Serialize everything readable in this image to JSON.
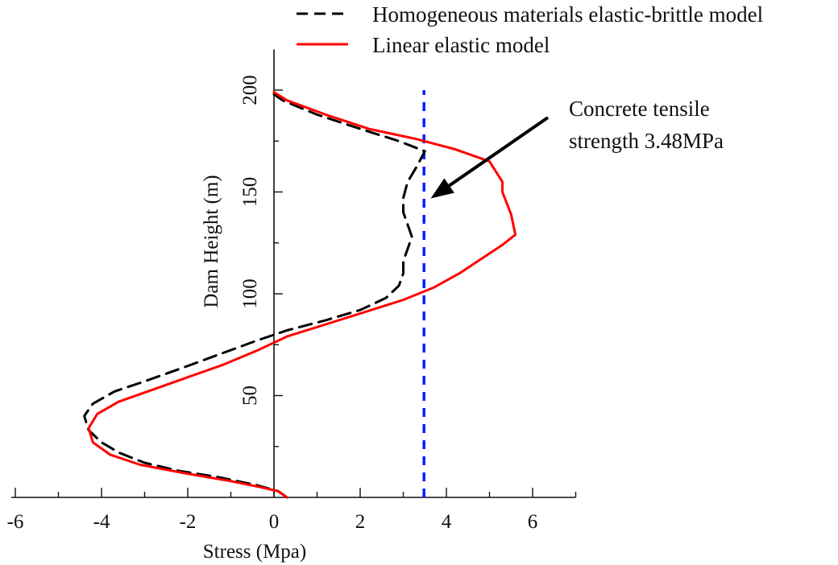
{
  "chart_data": {
    "type": "line",
    "title": "",
    "xlabel": "Stress (Mpa)",
    "ylabel": "Dam Height (m)",
    "xlim": [
      -6,
      7
    ],
    "ylim": [
      0,
      220
    ],
    "x_ticks": [
      -6,
      -4,
      -2,
      0,
      2,
      4,
      6
    ],
    "x_tick_labels": [
      "-6",
      "-4",
      "-2",
      "0",
      "2",
      "4",
      "6"
    ],
    "y_ticks": [
      50,
      100,
      150,
      200
    ],
    "y_tick_labels": [
      "50",
      "100",
      "150",
      "200"
    ],
    "legend_position": "top",
    "grid": false,
    "series": [
      {
        "name": "Homogeneous materials elastic-brittle model",
        "color": "#000000",
        "style": "dashed",
        "points": [
          [
            0.3,
            0
          ],
          [
            0.1,
            3
          ],
          [
            -0.4,
            6
          ],
          [
            -1.3,
            10
          ],
          [
            -2.2,
            13
          ],
          [
            -3.0,
            17
          ],
          [
            -3.6,
            22
          ],
          [
            -4.0,
            27
          ],
          [
            -4.3,
            33
          ],
          [
            -4.4,
            40
          ],
          [
            -4.2,
            46
          ],
          [
            -3.7,
            52
          ],
          [
            -3.0,
            57
          ],
          [
            -2.2,
            63
          ],
          [
            -1.3,
            70
          ],
          [
            -0.4,
            77
          ],
          [
            0.3,
            82
          ],
          [
            1.2,
            87
          ],
          [
            2.0,
            92
          ],
          [
            2.6,
            98
          ],
          [
            2.9,
            104
          ],
          [
            3.0,
            110
          ],
          [
            3.0,
            116
          ],
          [
            3.1,
            122
          ],
          [
            3.2,
            128
          ],
          [
            3.1,
            134
          ],
          [
            3.0,
            140
          ],
          [
            3.0,
            147
          ],
          [
            3.1,
            155
          ],
          [
            3.3,
            162
          ],
          [
            3.5,
            170
          ],
          [
            2.9,
            175
          ],
          [
            2.0,
            181
          ],
          [
            1.0,
            188
          ],
          [
            0.2,
            195
          ],
          [
            0.0,
            198
          ]
        ]
      },
      {
        "name": "Linear elastic model",
        "color": "#ff0000",
        "style": "solid",
        "points": [
          [
            0.3,
            0
          ],
          [
            0.1,
            3
          ],
          [
            -0.3,
            5
          ],
          [
            -1.0,
            8
          ],
          [
            -2.1,
            12
          ],
          [
            -3.1,
            16
          ],
          [
            -3.8,
            21
          ],
          [
            -4.2,
            27
          ],
          [
            -4.3,
            34
          ],
          [
            -4.1,
            41
          ],
          [
            -3.6,
            47
          ],
          [
            -2.8,
            53
          ],
          [
            -2.0,
            59
          ],
          [
            -1.2,
            65
          ],
          [
            -0.4,
            72
          ],
          [
            0.3,
            79
          ],
          [
            1.2,
            85
          ],
          [
            2.1,
            91
          ],
          [
            3.0,
            97
          ],
          [
            3.7,
            103
          ],
          [
            4.3,
            110
          ],
          [
            4.8,
            117
          ],
          [
            5.3,
            124
          ],
          [
            5.6,
            129
          ],
          [
            5.5,
            139
          ],
          [
            5.3,
            150
          ],
          [
            5.3,
            155
          ],
          [
            5.0,
            165
          ],
          [
            4.2,
            171
          ],
          [
            3.3,
            176
          ],
          [
            2.2,
            181
          ],
          [
            1.2,
            188
          ],
          [
            0.3,
            195
          ],
          [
            0.0,
            199
          ]
        ]
      }
    ],
    "reference_line": {
      "orientation": "vertical",
      "x": 3.48,
      "y_range": [
        0,
        200
      ],
      "color": "#0022ff",
      "style": "dashed"
    },
    "annotation": {
      "lines": [
        "Concrete tensile",
        "strength 3.48MPa"
      ],
      "arrow_to": [
        3.6,
        150
      ]
    }
  }
}
